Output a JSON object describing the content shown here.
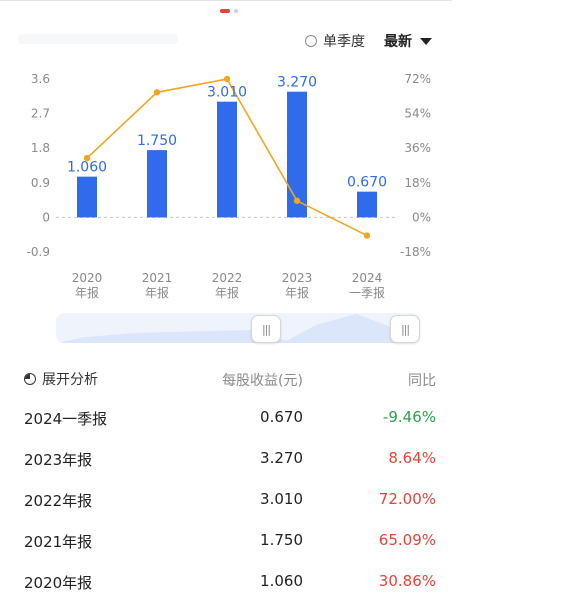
{
  "header": {
    "quarter_toggle_label": "单季度",
    "latest_label": "最新"
  },
  "colors": {
    "bar": "#2f6bea",
    "line": "#f2a61f",
    "up": "#e0463b",
    "down": "#2ba24c",
    "axis": "#8a8a8a"
  },
  "chart_data": {
    "type": "bar",
    "categories": [
      [
        "2020",
        "年报"
      ],
      [
        "2021",
        "年报"
      ],
      [
        "2022",
        "年报"
      ],
      [
        "2023",
        "年报"
      ],
      [
        "2024",
        "一季报"
      ]
    ],
    "series": [
      {
        "values": [
          1.06,
          1.75,
          3.01,
          3.27,
          0.67
        ],
        "axis": "left",
        "labels": [
          "1.060",
          "1.750",
          "3.010",
          "3.270",
          "0.670"
        ]
      },
      {
        "values": [
          30.86,
          65.09,
          72.0,
          8.64,
          -9.46
        ],
        "axis": "right",
        "type": "line"
      }
    ],
    "y_left": {
      "ticks": [
        "3.6",
        "2.7",
        "1.8",
        "0.9",
        "0",
        "-0.9"
      ],
      "range": [
        -0.9,
        3.6
      ]
    },
    "y_right": {
      "ticks": [
        "72%",
        "54%",
        "36%",
        "18%",
        "0%",
        "-18%"
      ],
      "range": [
        -18,
        72
      ]
    },
    "grid": false
  },
  "table": {
    "header": {
      "name": "展开分析",
      "eps": "每股收益(元)",
      "yoy": "同比"
    },
    "rows": [
      {
        "name": "2024一季报",
        "eps": "0.670",
        "yoy": "-9.46%",
        "dir": "down"
      },
      {
        "name": "2023年报",
        "eps": "3.270",
        "yoy": "8.64%",
        "dir": "up"
      },
      {
        "name": "2022年报",
        "eps": "3.010",
        "yoy": "72.00%",
        "dir": "up"
      },
      {
        "name": "2021年报",
        "eps": "1.750",
        "yoy": "65.09%",
        "dir": "up"
      },
      {
        "name": "2020年报",
        "eps": "1.060",
        "yoy": "30.86%",
        "dir": "up"
      }
    ]
  }
}
